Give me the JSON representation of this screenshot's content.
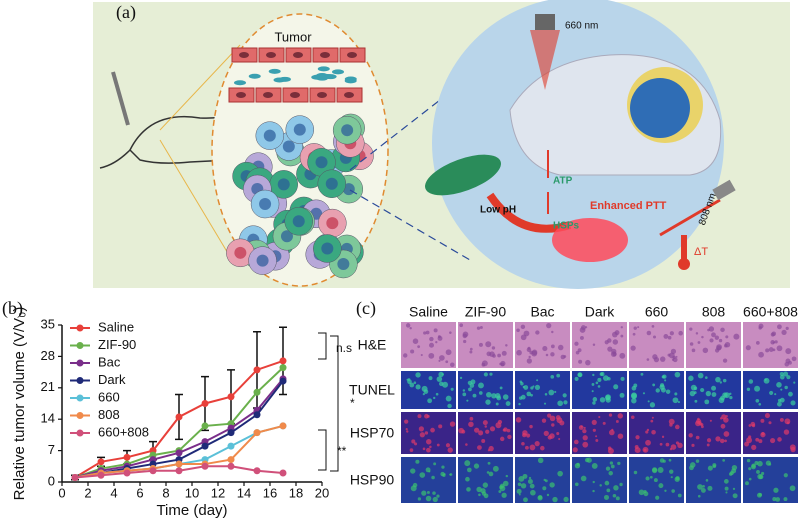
{
  "panel_labels": [
    "(a)",
    "(b)",
    "(c)"
  ],
  "panel_a": {
    "tumor_label": "Tumor",
    "laser_660": "660 nm",
    "laser_808": "808 nm",
    "atp": "ATP",
    "hsps": "HSPs",
    "enhanced_ptt": "Enhanced PTT",
    "low_ph": "Low pH",
    "delta_t": "ΔT"
  },
  "chart_data": {
    "type": "line",
    "x_label": "Time (day)",
    "y_label": "Relative tumor volume (V/V₀)",
    "x": [
      1,
      3,
      5,
      7,
      9,
      11,
      13,
      15,
      17
    ],
    "xlim": [
      0,
      20
    ],
    "xticks": [
      0,
      2,
      4,
      6,
      8,
      10,
      12,
      14,
      16,
      18,
      20
    ],
    "ylim": [
      0,
      35
    ],
    "yticks": [
      0,
      7,
      14,
      21,
      28,
      35
    ],
    "legend": "upper left",
    "annotations": [
      "n.s",
      "*",
      "**"
    ],
    "series": [
      {
        "name": "Saline",
        "color": "#e8403a",
        "values": [
          1,
          4.5,
          5.5,
          7,
          14.5,
          17.5,
          19,
          25,
          27
        ],
        "errors": [
          0.5,
          1,
          1.5,
          2,
          5,
          6,
          6,
          8.5,
          7.5
        ]
      },
      {
        "name": "ZIF-90",
        "color": "#6ab04c",
        "values": [
          1,
          3,
          4,
          6,
          7,
          12.5,
          13,
          20,
          25.5
        ]
      },
      {
        "name": "Bac",
        "color": "#7a2e8a",
        "values": [
          1,
          2.5,
          3.5,
          5,
          6.5,
          9,
          12,
          16,
          23
        ]
      },
      {
        "name": "Dark",
        "color": "#1f2a78",
        "values": [
          1,
          2,
          3,
          4,
          5,
          8,
          11,
          15,
          22.5
        ]
      },
      {
        "name": "660",
        "color": "#5bc0d8",
        "values": [
          1,
          2,
          2.5,
          3,
          4,
          5,
          8,
          11,
          12.5
        ]
      },
      {
        "name": "808",
        "color": "#f08a4b",
        "values": [
          1,
          2,
          2.5,
          3,
          4,
          4,
          5,
          11,
          12.5
        ]
      },
      {
        "name": "660+808",
        "color": "#d0507a",
        "values": [
          1,
          1.5,
          2,
          2.5,
          2.5,
          3.5,
          3.5,
          2.5,
          2
        ]
      }
    ]
  },
  "panel_c": {
    "columns": [
      "Saline",
      "ZIF-90",
      "Bac",
      "Dark",
      "660",
      "808",
      "660+808"
    ],
    "rows": [
      "H&E",
      "TUNEL",
      "HSP70",
      "HSP90"
    ]
  }
}
